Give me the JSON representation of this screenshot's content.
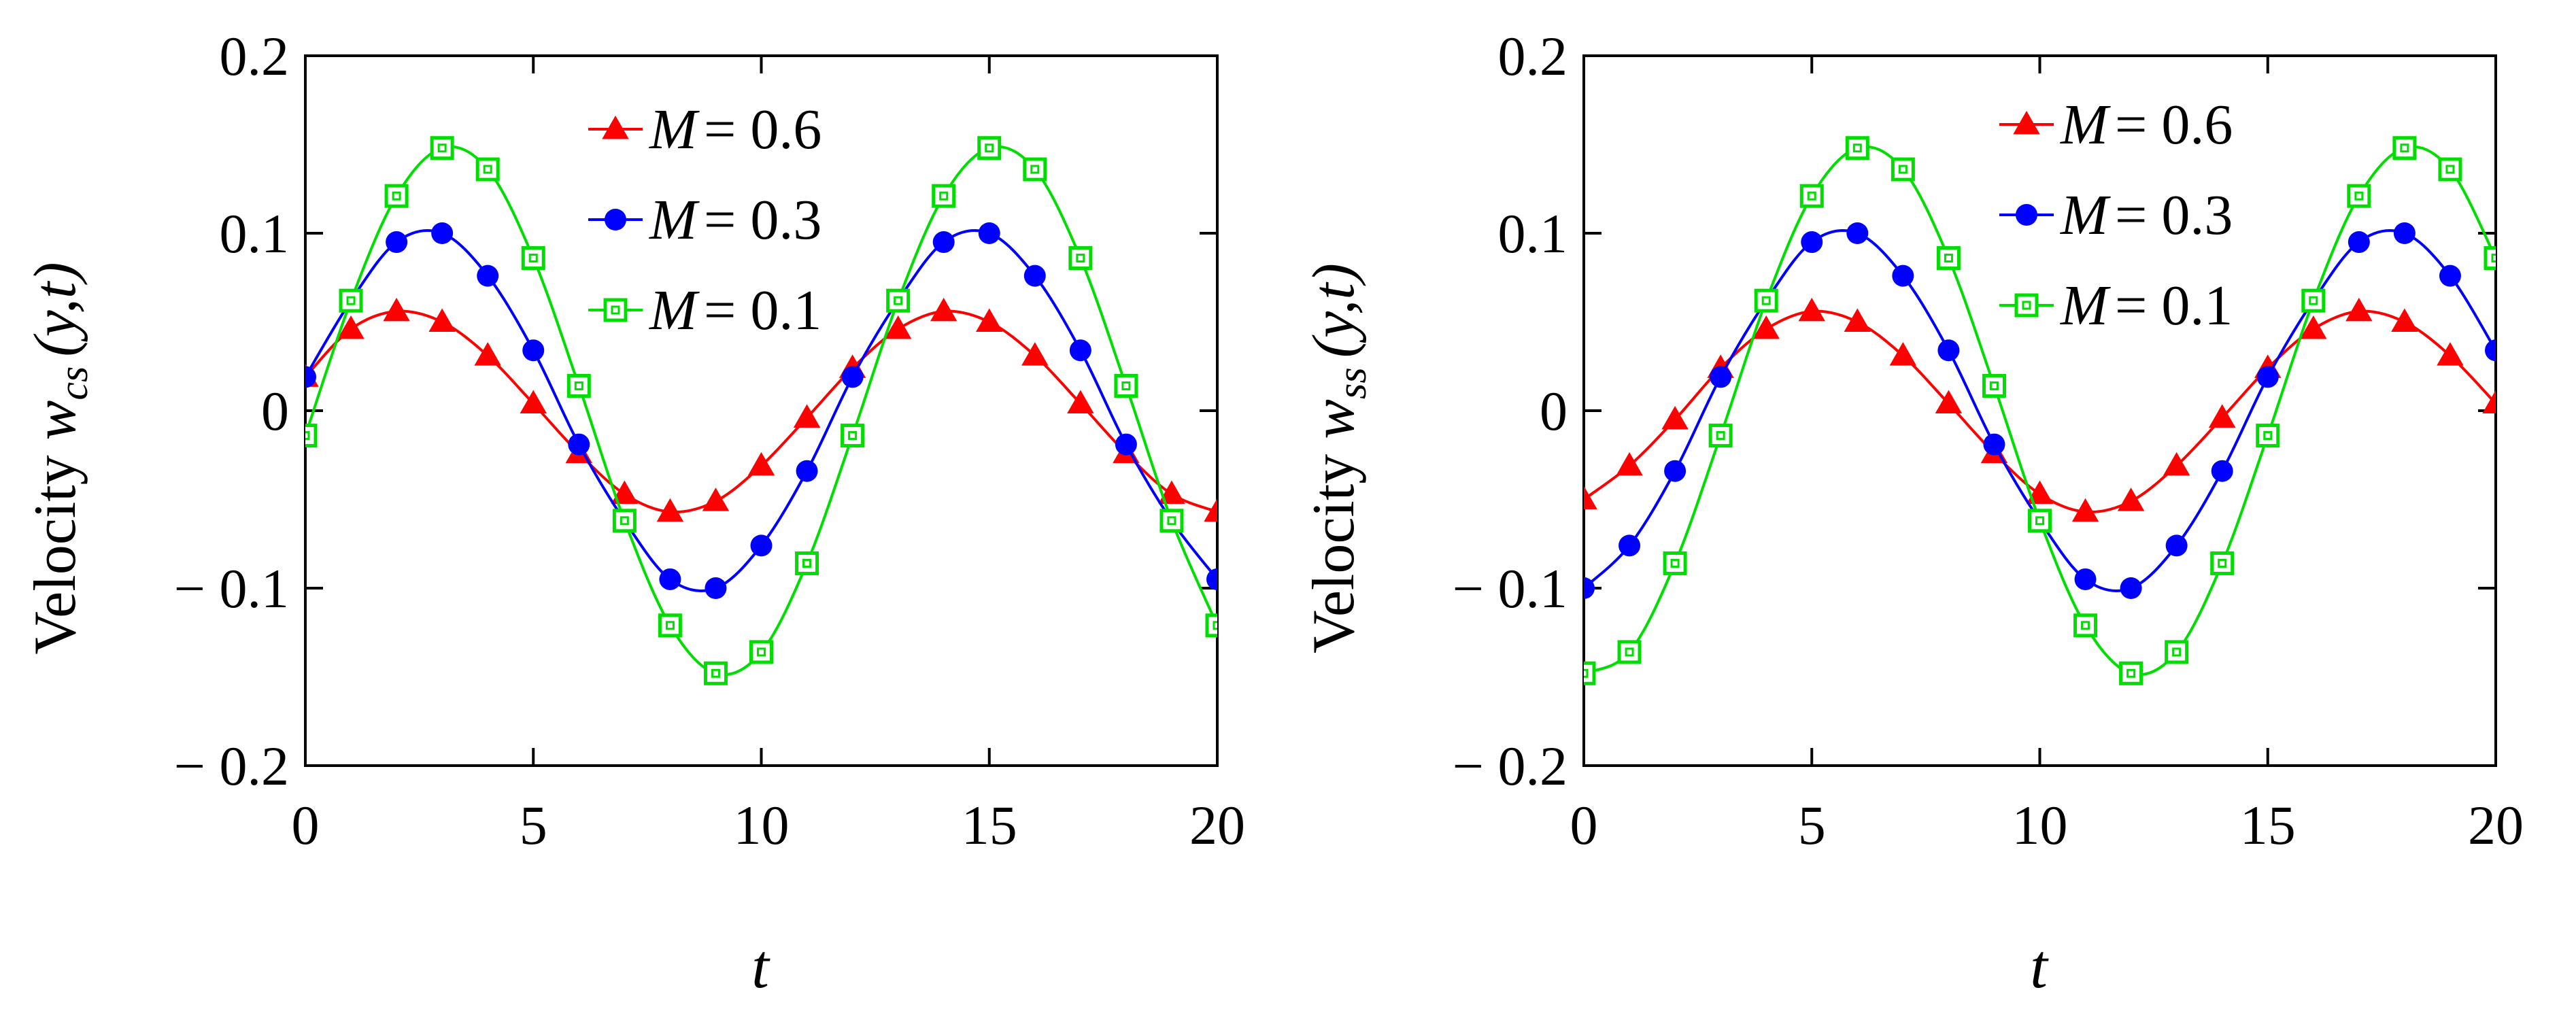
{
  "figure_title": "",
  "chart_data": [
    {
      "type": "line",
      "panel": "left",
      "title": "",
      "xlabel": "t",
      "ylabel": "Velocity w_cs(y,t)",
      "ylabel_parts": {
        "prefix": "Velocity ",
        "symbol": "w",
        "subscript": "cs",
        "args": "(y,t)"
      },
      "xlim": [
        0,
        20
      ],
      "ylim": [
        -0.2,
        0.2
      ],
      "xticks": [
        0,
        5,
        10,
        15,
        20
      ],
      "xtick_labels": [
        "0",
        "5",
        "10",
        "15",
        "20"
      ],
      "yticks": [
        0.2,
        0.1,
        0,
        -0.1,
        -0.2
      ],
      "ytick_labels": [
        "0.2",
        "0.1",
        "0",
        "− 0.1",
        "− 0.2"
      ],
      "grid": false,
      "legend_position": "top-center",
      "x": [
        0,
        1,
        2,
        3,
        4,
        5,
        6,
        7,
        8,
        9,
        10,
        11,
        12,
        13,
        14,
        15,
        16,
        17,
        18,
        19,
        20
      ],
      "series": [
        {
          "name": "M = 0.6",
          "symbol": "M",
          "value_text": "= 0.6",
          "color": "#ff0000",
          "marker": "triangle",
          "values": [
            0.019,
            0.046,
            0.056,
            0.05,
            0.031,
            0.004,
            -0.024,
            -0.047,
            -0.057,
            -0.051,
            -0.031,
            -0.004,
            0.024,
            0.046,
            0.056,
            0.05,
            0.031,
            0.004,
            -0.024,
            -0.047,
            -0.057
          ]
        },
        {
          "name": "M = 0.3",
          "symbol": "M",
          "value_text": "= 0.3",
          "color": "#0000ff",
          "marker": "circle",
          "values": [
            0.019,
            0.062,
            0.095,
            0.1,
            0.076,
            0.034,
            -0.019,
            -0.062,
            -0.095,
            -0.1,
            -0.076,
            -0.034,
            0.019,
            0.062,
            0.095,
            0.1,
            0.076,
            0.034,
            -0.019,
            -0.062,
            -0.095
          ]
        },
        {
          "name": "M = 0.1",
          "symbol": "M",
          "value_text": "= 0.1",
          "color": "#00dd00",
          "marker": "square-open",
          "values": [
            -0.014,
            0.062,
            0.121,
            0.148,
            0.136,
            0.086,
            0.014,
            -0.062,
            -0.121,
            -0.148,
            -0.136,
            -0.086,
            -0.014,
            0.062,
            0.121,
            0.148,
            0.136,
            0.086,
            0.014,
            -0.062,
            -0.121
          ]
        }
      ]
    },
    {
      "type": "line",
      "panel": "right",
      "title": "",
      "xlabel": "t",
      "ylabel": "Velocity w_ss(y,t)",
      "ylabel_parts": {
        "prefix": "Velocity ",
        "symbol": "w",
        "subscript": "ss",
        "args": "(y,t)"
      },
      "xlim": [
        0,
        20
      ],
      "ylim": [
        -0.2,
        0.2
      ],
      "xticks": [
        0,
        5,
        10,
        15,
        20
      ],
      "xtick_labels": [
        "0",
        "5",
        "10",
        "15",
        "20"
      ],
      "yticks": [
        0.2,
        0.1,
        0,
        -0.1,
        -0.2
      ],
      "ytick_labels": [
        "0.2",
        "0.1",
        "0",
        "− 0.1",
        "− 0.2"
      ],
      "grid": false,
      "legend_position": "top-right",
      "x": [
        0,
        1,
        2,
        3,
        4,
        5,
        6,
        7,
        8,
        9,
        10,
        11,
        12,
        13,
        14,
        15,
        16,
        17,
        18,
        19,
        20
      ],
      "series": [
        {
          "name": "M = 0.6",
          "symbol": "M",
          "value_text": "= 0.6",
          "color": "#ff0000",
          "marker": "triangle",
          "values": [
            -0.05,
            -0.031,
            -0.005,
            0.024,
            0.046,
            0.056,
            0.05,
            0.031,
            0.004,
            -0.024,
            -0.047,
            -0.057,
            -0.051,
            -0.031,
            -0.004,
            0.024,
            0.046,
            0.056,
            0.05,
            0.031,
            0.004
          ]
        },
        {
          "name": "M = 0.3",
          "symbol": "M",
          "value_text": "= 0.3",
          "color": "#0000ff",
          "marker": "circle",
          "values": [
            -0.1,
            -0.076,
            -0.034,
            0.019,
            0.062,
            0.095,
            0.1,
            0.076,
            0.034,
            -0.019,
            -0.062,
            -0.095,
            -0.1,
            -0.076,
            -0.034,
            0.019,
            0.062,
            0.095,
            0.1,
            0.076,
            0.034
          ]
        },
        {
          "name": "M = 0.1",
          "symbol": "M",
          "value_text": "= 0.1",
          "color": "#00dd00",
          "marker": "square-open",
          "values": [
            -0.148,
            -0.136,
            -0.086,
            -0.014,
            0.062,
            0.121,
            0.148,
            0.136,
            0.086,
            0.014,
            -0.062,
            -0.121,
            -0.148,
            -0.136,
            -0.086,
            -0.014,
            0.062,
            0.121,
            0.148,
            0.136,
            0.086
          ]
        }
      ]
    }
  ]
}
